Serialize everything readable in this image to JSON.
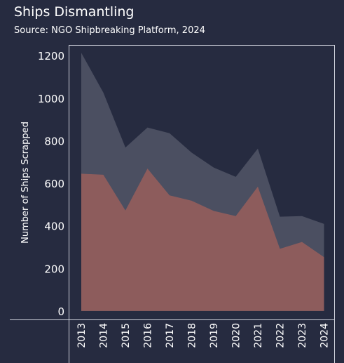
{
  "title": "Ships Dismantling",
  "subtitle": "Source: NGO Shipbreaking Platform, 2024",
  "colors": {
    "background": "#262b40",
    "total_area": "#4b4f61",
    "south_asia_area": "#8d5c5c",
    "axis_line": "#cfd2dc"
  },
  "chart_data": {
    "type": "area",
    "title": "Ships Dismantling",
    "subtitle": "Source: NGO Shipbreaking Platform, 2024",
    "xlabel": "",
    "ylabel": "Number of Ships Scrapped",
    "x": [
      "2013",
      "2014",
      "2015",
      "2016",
      "2017",
      "2018",
      "2019",
      "2020",
      "2021",
      "2022",
      "2023",
      "2024"
    ],
    "ylim": [
      -40,
      1250
    ],
    "yticks": [
      0,
      200,
      400,
      600,
      800,
      1000,
      1200
    ],
    "grid": false,
    "legend": "none",
    "series": [
      {
        "values": [
          1213,
          1026,
          768,
          862,
          835,
          744,
          674,
          630,
          763,
          443,
          446,
          409
        ]
      },
      {
        "values": [
          645,
          640,
          472,
          669,
          543,
          518,
          470,
          446,
          584,
          292,
          324,
          253
        ]
      }
    ]
  }
}
